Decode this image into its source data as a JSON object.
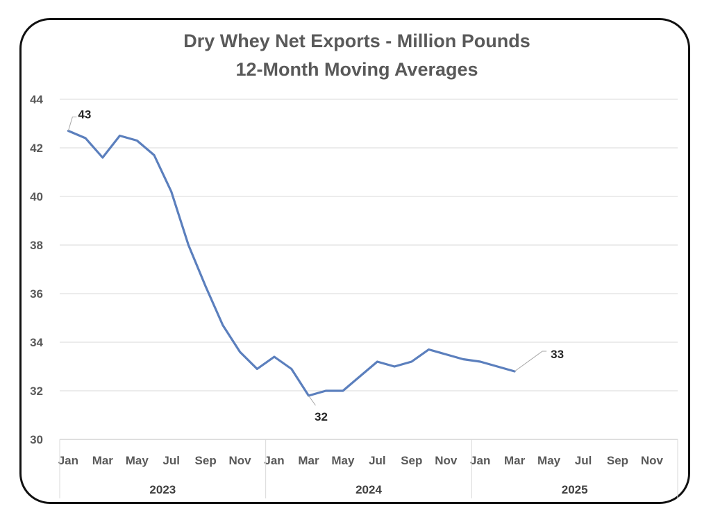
{
  "chart_data": {
    "type": "line",
    "title": "Dry Whey Net Exports - Million Pounds",
    "subtitle": "12-Month Moving Averages",
    "ylim": [
      30,
      44
    ],
    "y_ticks": [
      30,
      32,
      34,
      36,
      38,
      40,
      42,
      44
    ],
    "grid": true,
    "legend": "none",
    "colors": {
      "line": "#5b7fbd",
      "grid": "#d9d9d9",
      "text": "#595959"
    },
    "x_month_labels": [
      "Jan",
      "Mar",
      "May",
      "Jul",
      "Sep",
      "Nov",
      "Jan",
      "Mar",
      "May",
      "Jul",
      "Sep",
      "Nov",
      "Jan",
      "Mar",
      "May",
      "Jul",
      "Sep",
      "Nov"
    ],
    "x_year_labels": [
      "2023",
      "2024",
      "2025"
    ],
    "months_per_year": 12,
    "series": [
      {
        "x": [
          "2023-01",
          "2023-02",
          "2023-03",
          "2023-04",
          "2023-05",
          "2023-06",
          "2023-07",
          "2023-08",
          "2023-09",
          "2023-10",
          "2023-11",
          "2023-12",
          "2024-01",
          "2024-02",
          "2024-03",
          "2024-04",
          "2024-05",
          "2024-06",
          "2024-07",
          "2024-08",
          "2024-09",
          "2024-10",
          "2024-11",
          "2024-12",
          "2025-01",
          "2025-02",
          "2025-03"
        ],
        "values": [
          42.7,
          42.4,
          41.6,
          42.5,
          42.3,
          41.7,
          40.2,
          38.0,
          36.3,
          34.7,
          33.6,
          32.9,
          33.4,
          32.9,
          31.8,
          32.0,
          32.0,
          32.6,
          33.2,
          33.0,
          33.2,
          33.7,
          33.5,
          33.3,
          33.2,
          33.0,
          32.8
        ]
      }
    ],
    "data_labels": [
      {
        "index": 0,
        "text": "43"
      },
      {
        "index": 14,
        "text": "32"
      },
      {
        "index": 26,
        "text": "33"
      }
    ]
  }
}
